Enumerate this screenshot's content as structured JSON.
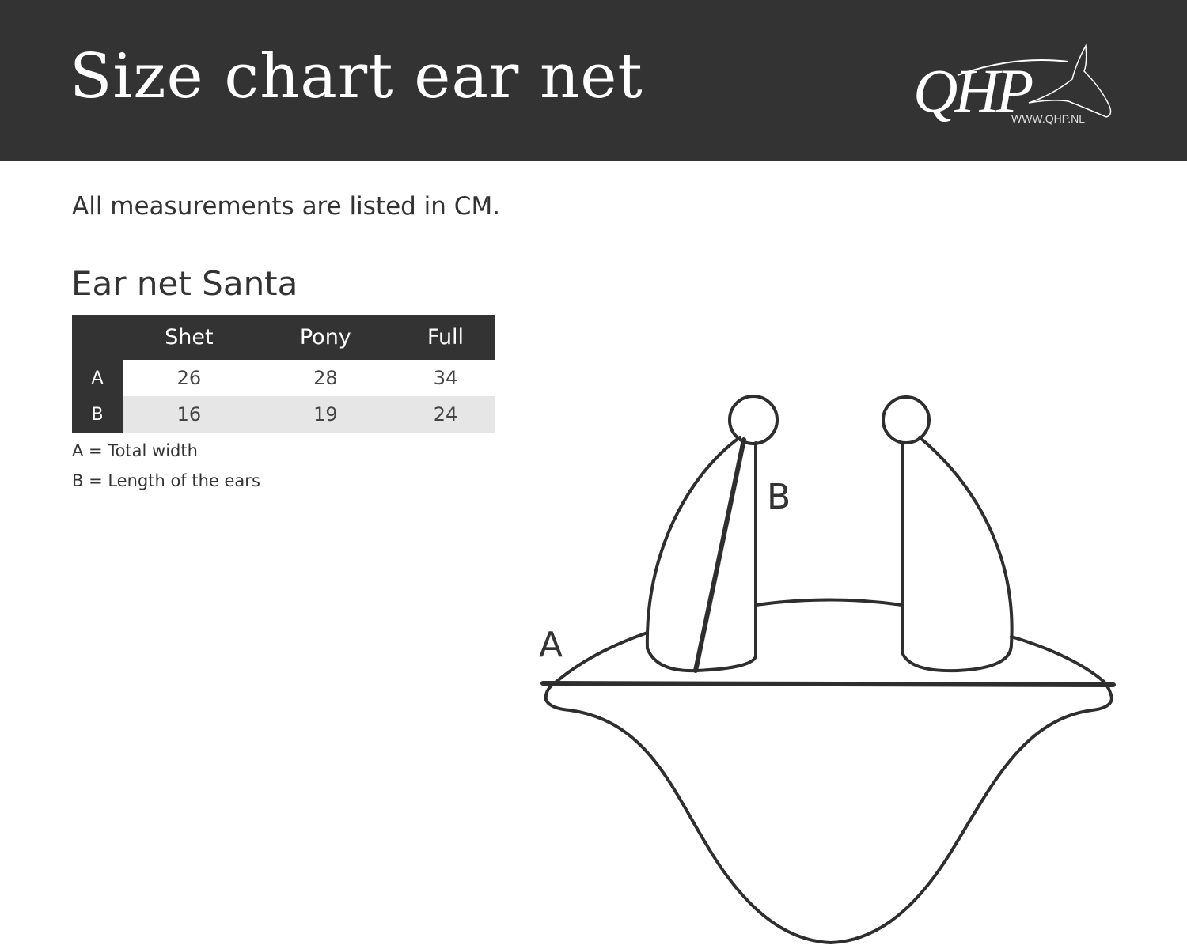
{
  "header": {
    "title": "Size chart ear net",
    "logo_text": "QHP",
    "logo_url": "WWW.QHP.NL"
  },
  "subtitle": "All measurements are listed in CM.",
  "section_title": "Ear net Santa",
  "table": {
    "columns": [
      "",
      "Shet",
      "Pony",
      "Full"
    ],
    "rows": [
      {
        "label": "A",
        "values": [
          "26",
          "28",
          "34"
        ]
      },
      {
        "label": "B",
        "values": [
          "16",
          "19",
          "24"
        ]
      }
    ]
  },
  "legend": [
    "A = Total width",
    "B = Length of the ears"
  ],
  "diagram": {
    "label_a": "A",
    "label_b": "B"
  },
  "colors": {
    "header_bg": "#333333",
    "alt_row": "#e6e6e6"
  }
}
